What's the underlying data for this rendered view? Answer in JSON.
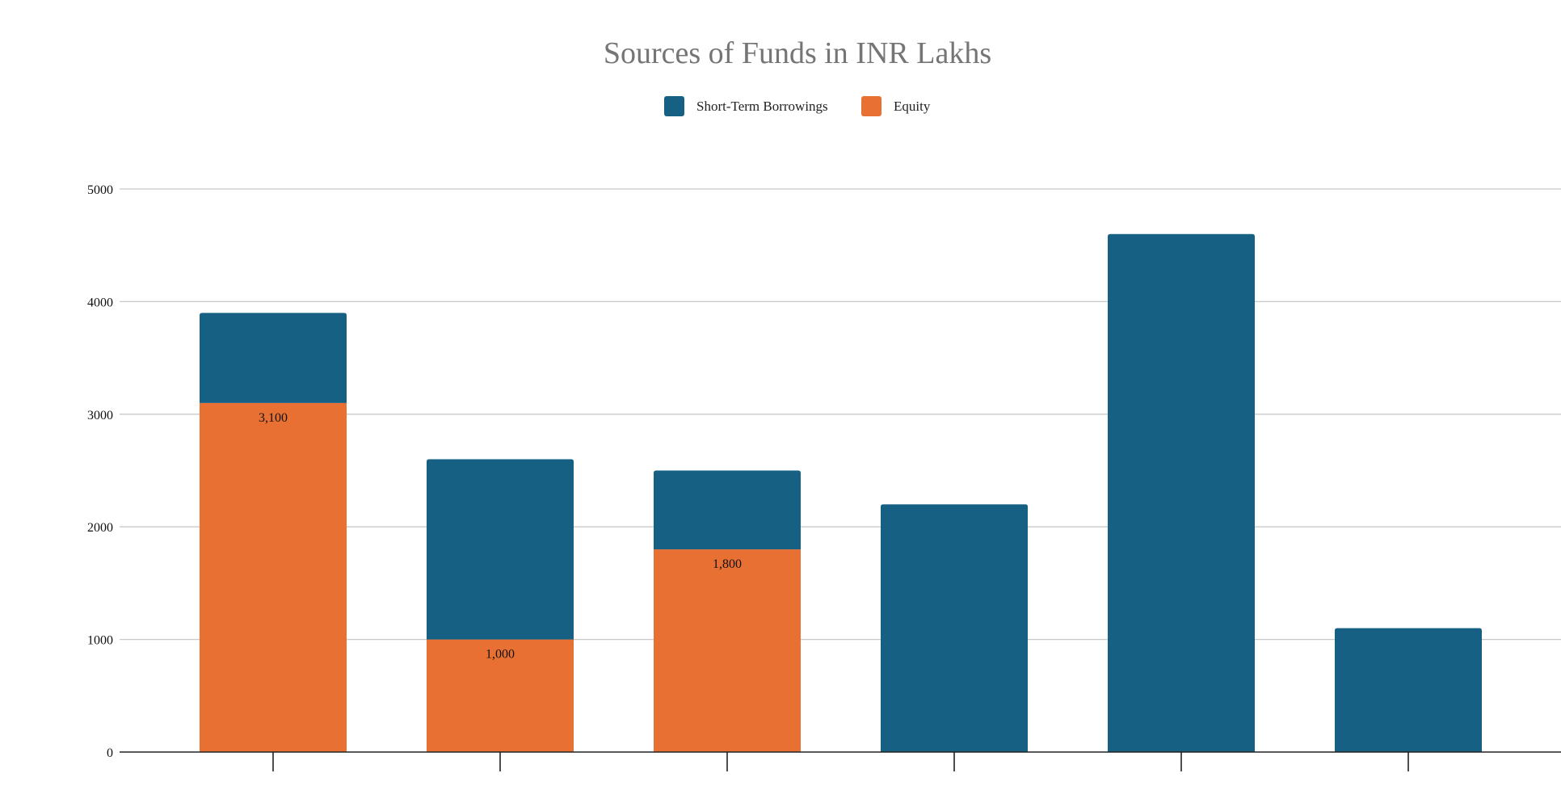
{
  "chart_data": {
    "type": "bar",
    "stacked": true,
    "title": "Sources of Funds in INR Lakhs",
    "xlabel": "",
    "ylabel": "",
    "ylim": [
      0,
      5000
    ],
    "yticks": [
      0,
      1000,
      2000,
      3000,
      4000,
      5000
    ],
    "categories": [
      "",
      "",
      "",
      "",
      "",
      ""
    ],
    "series": [
      {
        "name": "Equity",
        "color": "#E97033",
        "values": [
          3100,
          1000,
          1800,
          0,
          0,
          0
        ],
        "data_labels": [
          "3,100",
          "1,000",
          "1,800",
          "",
          "",
          ""
        ]
      },
      {
        "name": "Short-Term Borrowings",
        "color": "#166083",
        "values": [
          800,
          1600,
          700,
          2200,
          4600,
          1100
        ]
      }
    ],
    "legend": {
      "position": "top",
      "entries": [
        "Short-Term Borrowings",
        "Equity"
      ]
    },
    "grid": true
  }
}
